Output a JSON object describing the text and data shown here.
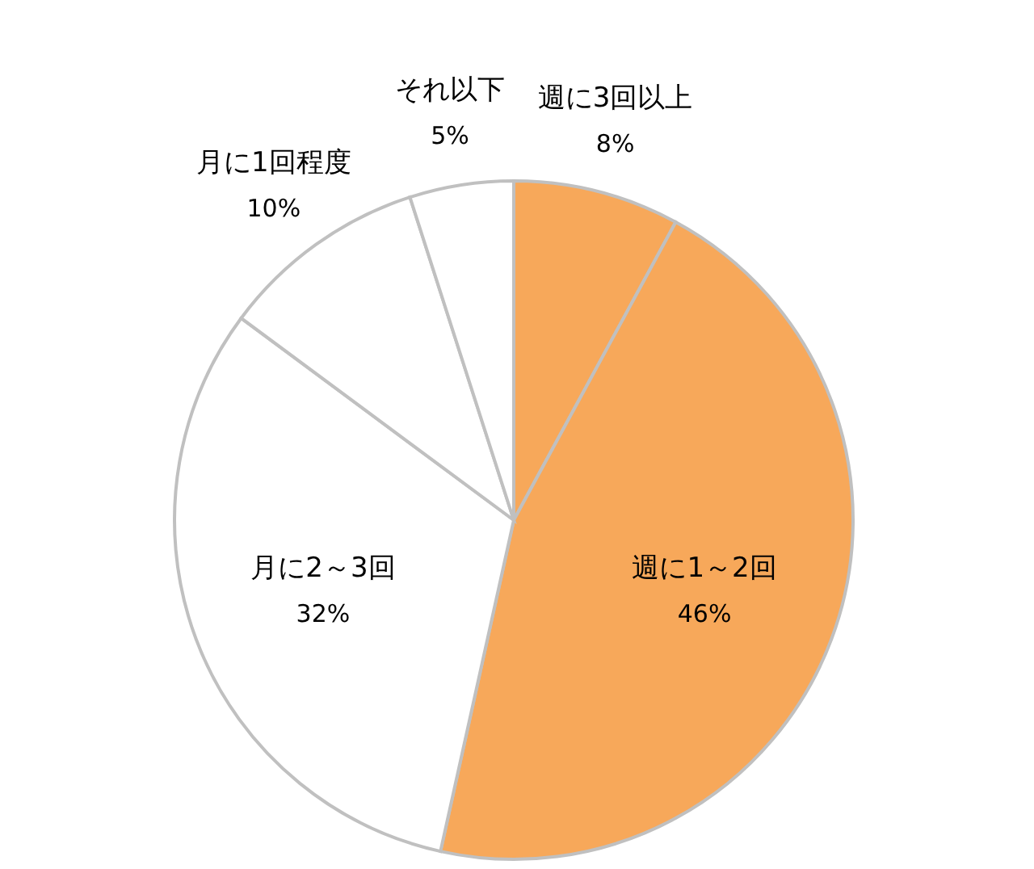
{
  "chart_data": {
    "type": "pie",
    "categories": [
      "週に3回以上",
      "週に1～2回",
      "月に2～3回",
      "月に1回程度",
      "それ以下"
    ],
    "values": [
      8,
      46,
      32,
      10,
      5
    ],
    "value_labels": [
      "8%",
      "46%",
      "32%",
      "10%",
      "5%"
    ],
    "colors": [
      "#f7a85a",
      "#f7a85a",
      "#ffffff",
      "#ffffff",
      "#ffffff"
    ]
  }
}
